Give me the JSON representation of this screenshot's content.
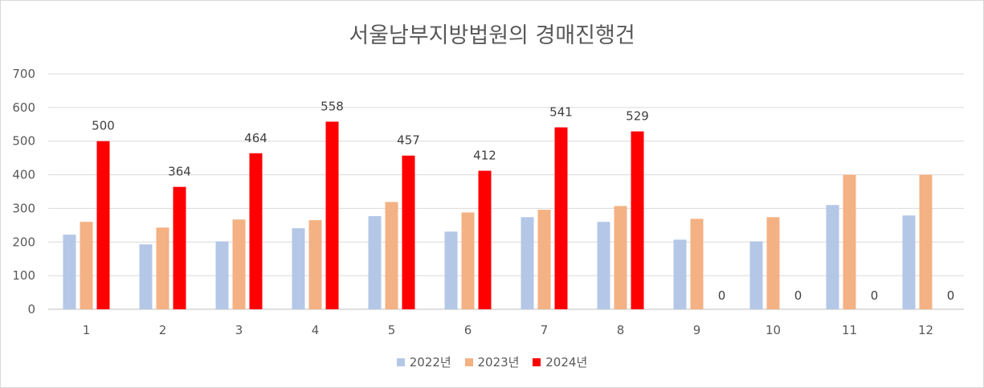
{
  "chart_data": {
    "type": "bar",
    "title": "서울남부지방법원의 경매진행건",
    "categories": [
      "1",
      "2",
      "3",
      "4",
      "5",
      "6",
      "7",
      "8",
      "9",
      "10",
      "11",
      "12"
    ],
    "series": [
      {
        "name": "2022년",
        "color": "#b4c7e7",
        "values": [
          222,
          193,
          202,
          241,
          277,
          231,
          274,
          260,
          207,
          202,
          310,
          279
        ]
      },
      {
        "name": "2023년",
        "color": "#f4b183",
        "values": [
          260,
          243,
          267,
          265,
          319,
          288,
          296,
          307,
          269,
          274,
          400,
          400
        ]
      },
      {
        "name": "2024년",
        "color": "#ff0000",
        "values": [
          500,
          364,
          464,
          558,
          457,
          412,
          541,
          529,
          0,
          0,
          0,
          0
        ],
        "data_labels": true
      }
    ],
    "ylim": [
      0,
      700
    ],
    "yticks": [
      0,
      100,
      200,
      300,
      400,
      500,
      600,
      700
    ],
    "grid": true,
    "legend": "bottom"
  }
}
